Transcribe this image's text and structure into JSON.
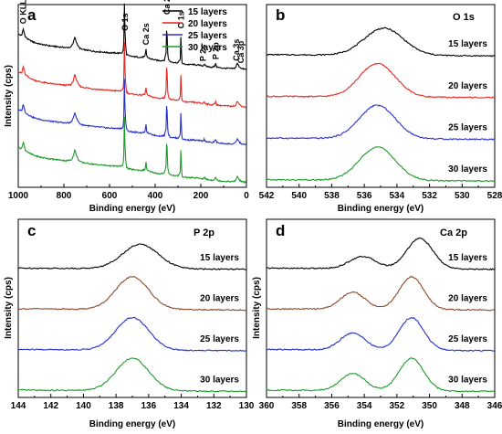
{
  "figure": {
    "colors": {
      "15 layers": "#000000",
      "20 layers": "#e8261f",
      "25 layers": "#2630c9",
      "30 layers": "#1d9a2a",
      "P2p 20 layers": "#8b4a2b",
      "Ca2p 20 layers": "#8b4a2b"
    }
  },
  "chart_data": [
    {
      "panel": "a",
      "type": "line",
      "title": "",
      "xlabel": "Binding energy (eV)",
      "ylabel": "Intensity (cps)",
      "xlim": [
        1000,
        0
      ],
      "x_reversed": true,
      "xticks": [
        1000,
        800,
        600,
        400,
        200,
        0
      ],
      "legend": {
        "position": "top-right",
        "entries": [
          "15 layers",
          "20 layers",
          "25 layers",
          "30 layers"
        ]
      },
      "series": [
        {
          "name": "15 layers",
          "color": "#000000",
          "offset": 3.0
        },
        {
          "name": "20 layers",
          "color": "#e8261f",
          "offset": 2.0
        },
        {
          "name": "25 layers",
          "color": "#2630c9",
          "offset": 1.0
        },
        {
          "name": "30 layers",
          "color": "#1d9a2a",
          "offset": 0.0
        }
      ],
      "profile_x": [
        1000,
        985,
        978,
        970,
        955,
        930,
        900,
        870,
        840,
        810,
        790,
        770,
        760,
        752,
        745,
        738,
        730,
        720,
        700,
        680,
        660,
        640,
        620,
        600,
        580,
        560,
        545,
        538,
        535,
        532,
        529,
        525,
        515,
        500,
        480,
        460,
        445,
        440,
        437,
        432,
        420,
        400,
        380,
        360,
        352,
        349,
        346,
        342,
        335,
        320,
        300,
        290,
        287,
        284,
        280,
        270,
        250,
        235,
        225,
        200,
        190,
        185,
        180,
        170,
        150,
        140,
        135,
        130,
        120,
        100,
        80,
        60,
        48,
        44,
        40,
        30,
        20,
        5,
        0
      ],
      "profile_y": [
        1.55,
        1.5,
        1.8,
        1.45,
        1.32,
        1.2,
        1.12,
        1.07,
        1.03,
        1.0,
        0.98,
        1.0,
        1.15,
        1.45,
        1.2,
        1.05,
        0.95,
        0.9,
        0.87,
        0.84,
        0.81,
        0.8,
        0.78,
        0.76,
        0.75,
        0.74,
        0.76,
        0.9,
        2.85,
        1.5,
        1.0,
        0.7,
        0.62,
        0.6,
        0.58,
        0.56,
        0.6,
        0.9,
        0.62,
        0.55,
        0.5,
        0.45,
        0.42,
        0.44,
        0.75,
        2.2,
        0.8,
        0.5,
        0.38,
        0.35,
        0.33,
        0.5,
        1.6,
        0.4,
        0.3,
        0.27,
        0.25,
        0.26,
        0.24,
        0.22,
        0.2,
        0.28,
        0.2,
        0.17,
        0.14,
        0.18,
        0.28,
        0.15,
        0.12,
        0.1,
        0.09,
        0.08,
        0.12,
        0.22,
        0.3,
        0.15,
        0.08,
        0.05,
        0.04
      ],
      "peak_labels": [
        {
          "text": "O KLL",
          "x": 978
        },
        {
          "text": "O 1s",
          "x": 532
        },
        {
          "text": "Ca 2s",
          "x": 440
        },
        {
          "text": "Ca 2p",
          "x": 349
        },
        {
          "text": "C 1s",
          "x": 287
        },
        {
          "text": "P 2s",
          "x": 190
        },
        {
          "text": "P 2p",
          "x": 135
        },
        {
          "text": "Ca 3s",
          "x": 44
        },
        {
          "text": "Ca 3p",
          "x": 25
        }
      ]
    },
    {
      "panel": "b",
      "type": "line",
      "title": "O 1s",
      "xlabel": "Binding energy (eV)",
      "ylabel": "",
      "xlim": [
        542,
        528
      ],
      "x_reversed": true,
      "xticks": [
        542,
        540,
        538,
        536,
        534,
        532,
        530,
        528
      ],
      "series": [
        {
          "name": "15 layers",
          "color": "#000000",
          "center": 534.8,
          "width": 1.2,
          "amp": 0.65,
          "offset": 3.0
        },
        {
          "name": "20 layers",
          "color": "#e8261f",
          "center": 535.2,
          "width": 1.1,
          "amp": 0.8,
          "offset": 2.0
        },
        {
          "name": "25 layers",
          "color": "#2630c9",
          "center": 535.2,
          "width": 1.1,
          "amp": 0.8,
          "offset": 1.0
        },
        {
          "name": "30 layers",
          "color": "#1d9a2a",
          "center": 535.2,
          "width": 1.1,
          "amp": 0.8,
          "offset": 0.0
        }
      ]
    },
    {
      "panel": "c",
      "type": "line",
      "title": "P 2p",
      "xlabel": "Binding energy (eV)",
      "ylabel": "Intensity (cps)",
      "xlim": [
        144,
        130
      ],
      "x_reversed": true,
      "xticks": [
        144,
        142,
        140,
        138,
        136,
        134,
        132,
        130
      ],
      "series": [
        {
          "name": "15 layers",
          "color": "#000000",
          "center": 136.5,
          "width": 1.1,
          "amp": 0.6,
          "offset": 3.0
        },
        {
          "name": "20 layers",
          "color": "#8b4a2b",
          "center": 137.0,
          "width": 1.0,
          "amp": 0.8,
          "offset": 2.0
        },
        {
          "name": "25 layers",
          "color": "#2630c9",
          "center": 137.0,
          "width": 1.0,
          "amp": 0.8,
          "offset": 1.0
        },
        {
          "name": "30 layers",
          "color": "#1d9a2a",
          "center": 137.0,
          "width": 1.0,
          "amp": 0.8,
          "offset": 0.0
        }
      ]
    },
    {
      "panel": "d",
      "type": "line",
      "title": "Ca 2p",
      "xlabel": "Binding energy (eV)",
      "ylabel": "Intensity (cps)",
      "xlim": [
        360,
        346
      ],
      "x_reversed": true,
      "xticks": [
        360,
        358,
        356,
        354,
        352,
        350,
        348,
        346
      ],
      "series": [
        {
          "name": "15 layers",
          "color": "#000000",
          "center": 350.6,
          "center2": 354.1,
          "width": 0.8,
          "amp": 0.75,
          "amp2": 0.3,
          "offset": 3.0
        },
        {
          "name": "20 layers",
          "color": "#8b4a2b",
          "center": 351.1,
          "center2": 354.7,
          "width": 0.75,
          "amp": 0.8,
          "amp2": 0.42,
          "offset": 2.0
        },
        {
          "name": "25 layers",
          "color": "#2630c9",
          "center": 351.1,
          "center2": 354.7,
          "width": 0.75,
          "amp": 0.8,
          "amp2": 0.42,
          "offset": 1.0
        },
        {
          "name": "30 layers",
          "color": "#1d9a2a",
          "center": 351.1,
          "center2": 354.7,
          "width": 0.75,
          "amp": 0.8,
          "amp2": 0.42,
          "offset": 0.0
        }
      ]
    }
  ]
}
